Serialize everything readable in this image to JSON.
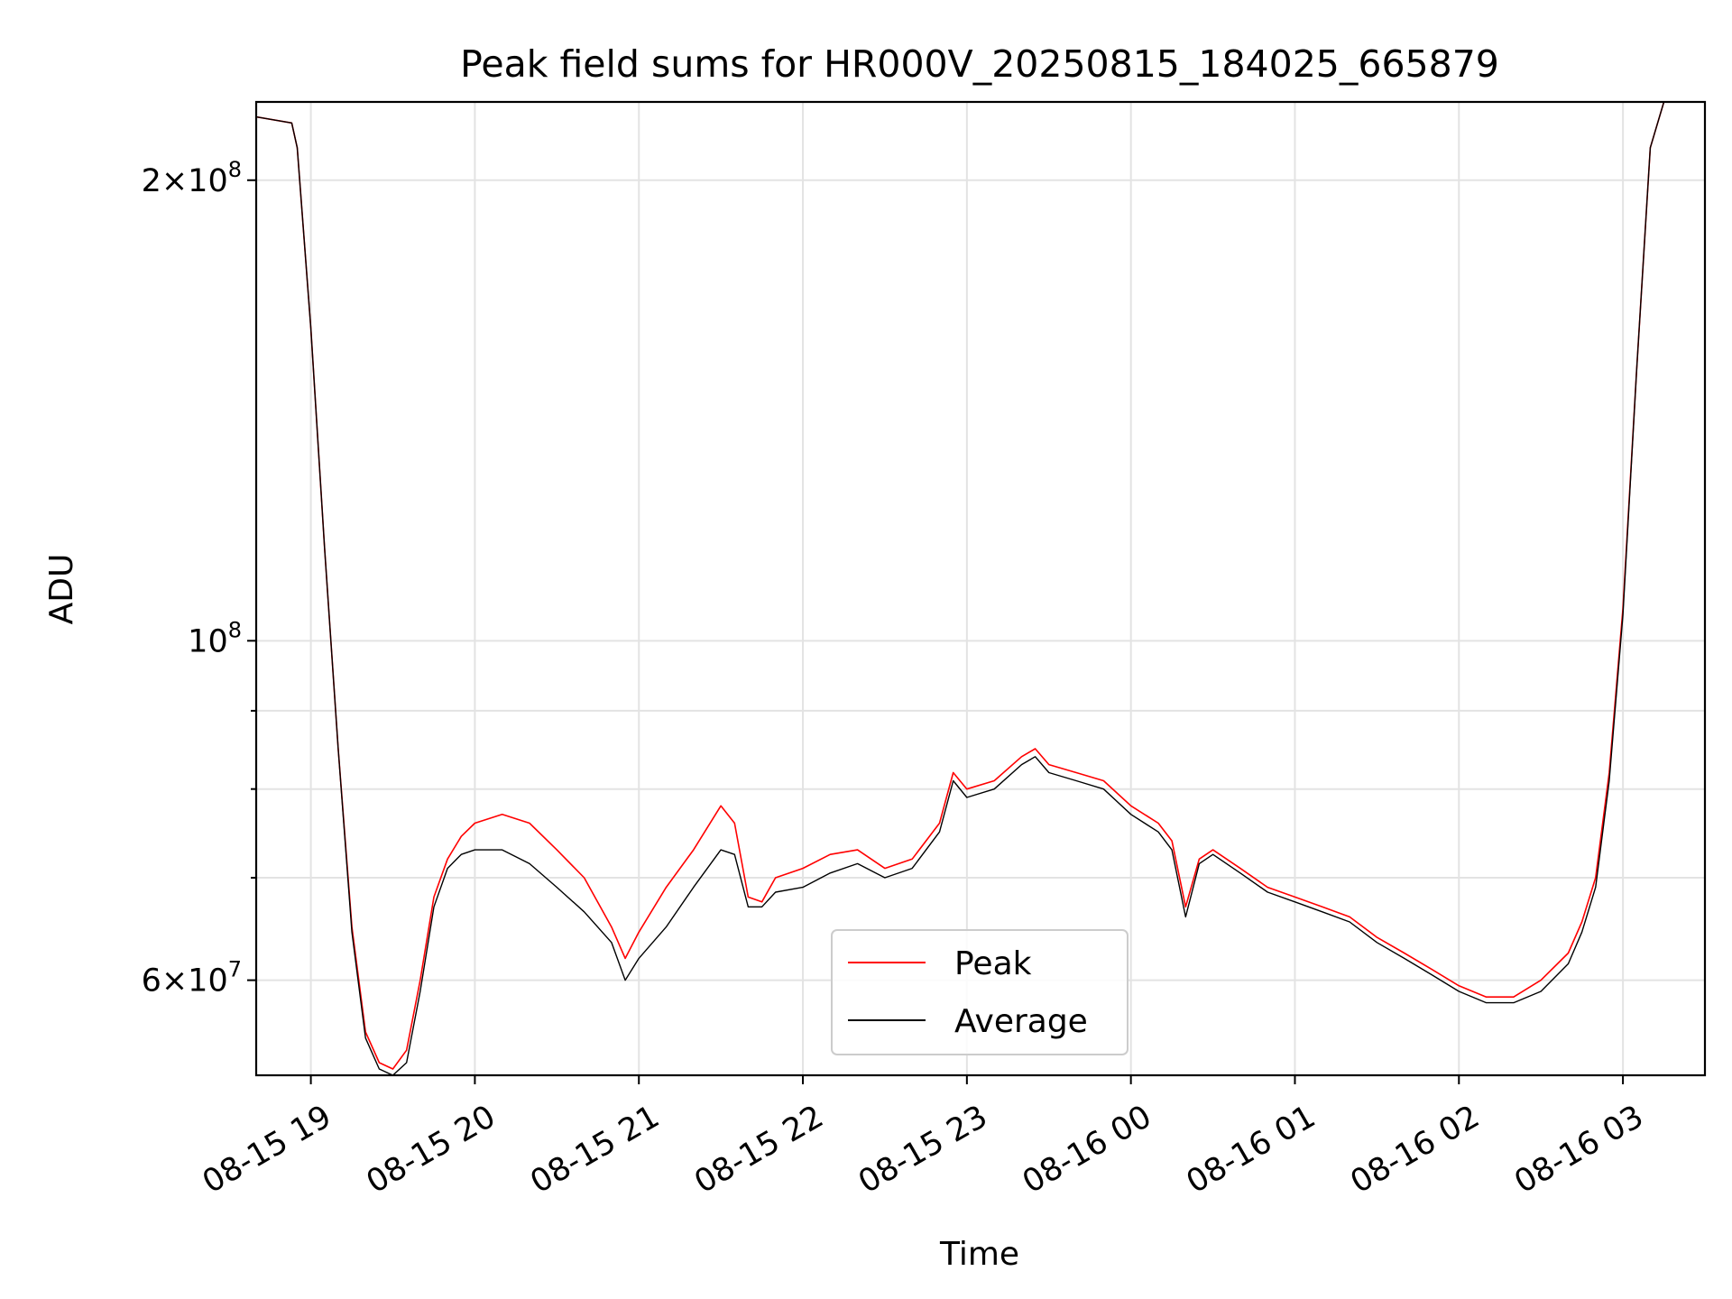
{
  "chart_data": {
    "type": "line",
    "title": "Peak field sums for HR000V_20250815_184025_665879",
    "xlabel": "Time",
    "ylabel": "ADU",
    "yscale": "log",
    "grid": true,
    "legend_position": "lower-center",
    "x_ticks": [
      "08-15 19",
      "08-15 20",
      "08-15 21",
      "08-15 22",
      "08-15 23",
      "08-16 00",
      "08-16 01",
      "08-16 02",
      "08-16 03"
    ],
    "y_major_ticks": [
      {
        "value": 200000000,
        "mantissa": "2",
        "exponent": "8"
      },
      {
        "value": 100000000,
        "mantissa": "",
        "exponent": "8"
      },
      {
        "value": 60000000,
        "mantissa": "6",
        "exponent": "7"
      }
    ],
    "y_minor_ticks": [
      70000000,
      80000000,
      90000000
    ],
    "xlim": [
      "2025-08-15 18:40",
      "2025-08-16 03:30"
    ],
    "ylim": [
      52000000,
      225000000
    ],
    "x": [
      "2025-08-15 18:40",
      "2025-08-15 18:53",
      "2025-08-15 18:55",
      "2025-08-15 19:00",
      "2025-08-15 19:05",
      "2025-08-15 19:10",
      "2025-08-15 19:15",
      "2025-08-15 19:20",
      "2025-08-15 19:25",
      "2025-08-15 19:30",
      "2025-08-15 19:35",
      "2025-08-15 19:40",
      "2025-08-15 19:45",
      "2025-08-15 19:50",
      "2025-08-15 19:55",
      "2025-08-15 20:00",
      "2025-08-15 20:10",
      "2025-08-15 20:20",
      "2025-08-15 20:30",
      "2025-08-15 20:40",
      "2025-08-15 20:50",
      "2025-08-15 20:55",
      "2025-08-15 21:00",
      "2025-08-15 21:10",
      "2025-08-15 21:20",
      "2025-08-15 21:30",
      "2025-08-15 21:35",
      "2025-08-15 21:40",
      "2025-08-15 21:45",
      "2025-08-15 21:50",
      "2025-08-15 22:00",
      "2025-08-15 22:10",
      "2025-08-15 22:20",
      "2025-08-15 22:30",
      "2025-08-15 22:40",
      "2025-08-15 22:50",
      "2025-08-15 22:55",
      "2025-08-15 23:00",
      "2025-08-15 23:10",
      "2025-08-15 23:20",
      "2025-08-15 23:25",
      "2025-08-15 23:30",
      "2025-08-15 23:40",
      "2025-08-15 23:50",
      "2025-08-16 00:00",
      "2025-08-16 00:10",
      "2025-08-16 00:15",
      "2025-08-16 00:20",
      "2025-08-16 00:25",
      "2025-08-16 00:30",
      "2025-08-16 00:40",
      "2025-08-16 00:50",
      "2025-08-16 01:00",
      "2025-08-16 01:10",
      "2025-08-16 01:20",
      "2025-08-16 01:30",
      "2025-08-16 01:40",
      "2025-08-16 01:50",
      "2025-08-16 02:00",
      "2025-08-16 02:10",
      "2025-08-16 02:20",
      "2025-08-16 02:30",
      "2025-08-16 02:40",
      "2025-08-16 02:45",
      "2025-08-16 02:50",
      "2025-08-16 02:55",
      "2025-08-16 03:00",
      "2025-08-16 03:05",
      "2025-08-16 03:10",
      "2025-08-16 03:15"
    ],
    "series": [
      {
        "name": "Peak",
        "color": "#ff0000",
        "values": [
          220000000,
          218000000,
          210000000,
          160000000,
          115000000,
          85000000,
          65000000,
          55500000,
          53000000,
          52500000,
          54000000,
          60000000,
          68000000,
          72000000,
          74500000,
          76000000,
          77000000,
          76000000,
          73000000,
          70000000,
          65000000,
          62000000,
          64500000,
          69000000,
          73000000,
          78000000,
          76000000,
          68000000,
          67500000,
          70000000,
          71000000,
          72500000,
          73000000,
          71000000,
          72000000,
          76000000,
          82000000,
          80000000,
          81000000,
          84000000,
          85000000,
          83000000,
          82000000,
          81000000,
          78000000,
          76000000,
          74000000,
          67000000,
          72000000,
          73000000,
          71000000,
          69000000,
          68000000,
          67000000,
          66000000,
          64000000,
          62500000,
          61000000,
          59500000,
          58500000,
          58500000,
          60000000,
          62500000,
          65500000,
          70000000,
          82000000,
          105000000,
          150000000,
          210000000,
          225000000
        ]
      },
      {
        "name": "Average",
        "color": "#000000",
        "values": [
          220000000,
          218000000,
          210000000,
          160000000,
          115000000,
          85000000,
          64500000,
          55000000,
          52500000,
          52000000,
          53000000,
          59000000,
          67000000,
          71000000,
          72500000,
          73000000,
          73000000,
          71500000,
          69000000,
          66500000,
          63500000,
          60000000,
          62000000,
          65000000,
          69000000,
          73000000,
          72500000,
          67000000,
          67000000,
          68500000,
          69000000,
          70500000,
          71500000,
          70000000,
          71000000,
          75000000,
          81000000,
          79000000,
          80000000,
          83000000,
          84000000,
          82000000,
          81000000,
          80000000,
          77000000,
          75000000,
          73000000,
          66000000,
          71500000,
          72500000,
          70500000,
          68500000,
          67500000,
          66500000,
          65500000,
          63500000,
          62000000,
          60500000,
          59000000,
          58000000,
          58000000,
          59000000,
          61500000,
          64500000,
          69000000,
          81000000,
          104000000,
          150000000,
          210000000,
          225000000
        ]
      }
    ]
  }
}
